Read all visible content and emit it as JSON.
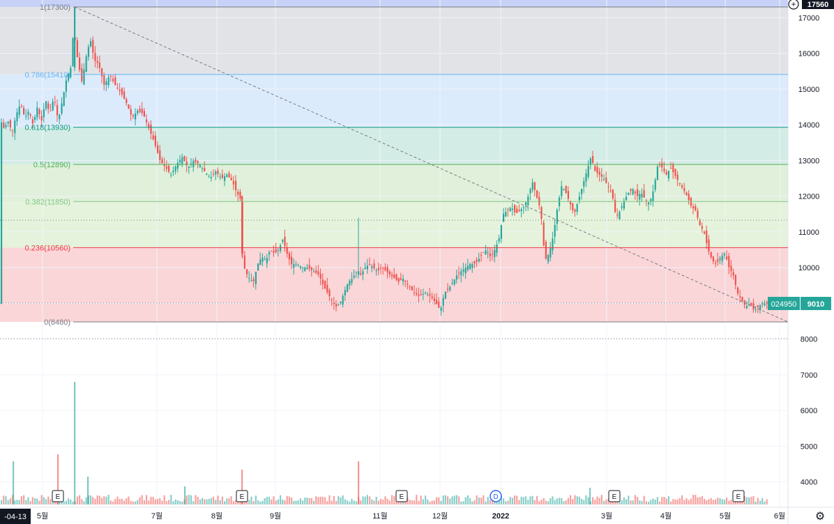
{
  "chart_data": {
    "type": "candlestick",
    "ticker": "024950",
    "last_price": "9010",
    "top_price_label": "17560",
    "start_date_label": "-04-13",
    "y_ticks": [
      "17000",
      "16000",
      "15000",
      "14000",
      "13000",
      "12000",
      "11000",
      "10000",
      "9000",
      "8000",
      "7000",
      "6000",
      "5000",
      "4000"
    ],
    "x_ticks": [
      "5월",
      "7월",
      "8월",
      "9월",
      "11월",
      "12월",
      "2022",
      "3월",
      "4월",
      "5월",
      "6월"
    ],
    "ylim": [
      3300,
      17650
    ],
    "fibonacci": {
      "levels": [
        {
          "label": "1(17300)",
          "price": 17300,
          "line": "#787b86",
          "fill": "#c8d2f8"
        },
        {
          "label": "0.786(15410)",
          "price": 15410,
          "line": "#64b5f6",
          "fill": "#e1e3e7"
        },
        {
          "label": "0.618(13930)",
          "price": 13930,
          "line": "#089981",
          "fill": "#dcebfb"
        },
        {
          "label": "0.5(12890)",
          "price": 12890,
          "line": "#4caf50",
          "fill": "#d4ece6"
        },
        {
          "label": "0.382(11850)",
          "price": 11850,
          "line": "#81c784",
          "fill": "#e0f0da"
        },
        {
          "label": "0.236(10560)",
          "price": 10560,
          "line": "#f23645",
          "fill": "#e5f3dc"
        },
        {
          "label": "0(8480)",
          "price": 8480,
          "line": "#787b86",
          "fill": "#fad6d8"
        }
      ],
      "label_colors": [
        "#787b86",
        "#64b5f6",
        "#089981",
        "#4caf50",
        "#81c784",
        "#f23645",
        "#787b86"
      ]
    },
    "trend_line": {
      "from_price": 17300,
      "to_price": 8480
    },
    "events": [
      {
        "type": "E",
        "marker": "E"
      },
      {
        "type": "E",
        "marker": "E"
      },
      {
        "type": "E",
        "marker": "E"
      },
      {
        "type": "D",
        "marker": "D"
      },
      {
        "type": "E",
        "marker": "E"
      },
      {
        "type": "E",
        "marker": "E"
      }
    ],
    "colors": {
      "up": "#26a69a",
      "down": "#ef5350",
      "axis_bg": "#ffffff"
    }
  }
}
